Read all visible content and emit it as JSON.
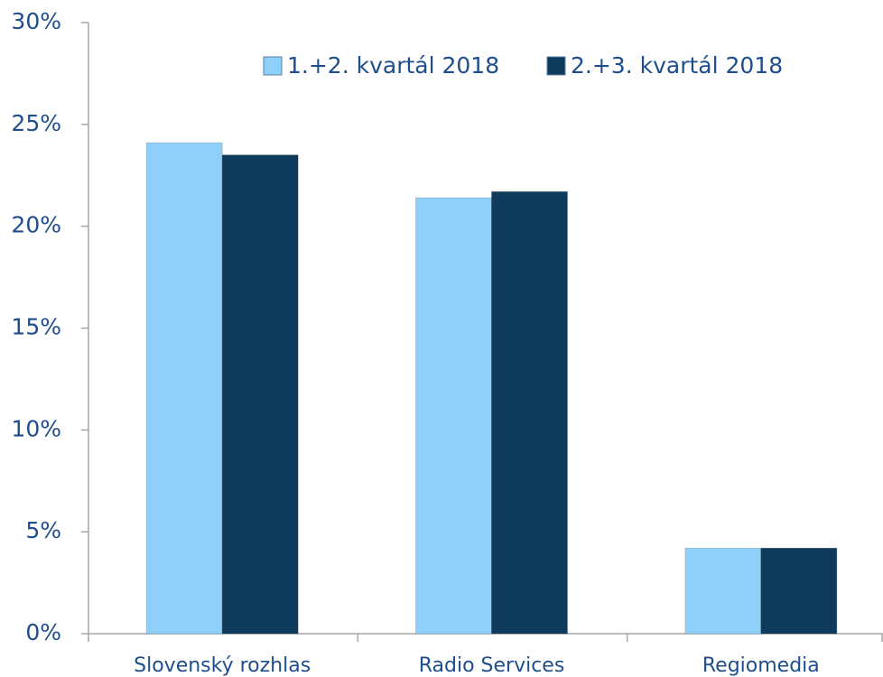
{
  "chart_data": {
    "type": "bar",
    "categories": [
      "Slovenský rozhlas",
      "Radio Services",
      "Regiomedia"
    ],
    "series": [
      {
        "name": "1.+2. kvartál 2018",
        "color": "#8fd0fb",
        "values": [
          24.1,
          21.4,
          4.2
        ]
      },
      {
        "name": "2.+3. kvartál 2018",
        "color": "#0e3a5c",
        "values": [
          23.5,
          21.7,
          4.2
        ]
      }
    ],
    "ylim": [
      0,
      30
    ],
    "yticks": [
      {
        "value": 0,
        "label": "0%"
      },
      {
        "value": 5,
        "label": "5%"
      },
      {
        "value": 10,
        "label": "10%"
      },
      {
        "value": 15,
        "label": "15%"
      },
      {
        "value": 20,
        "label": "20%"
      },
      {
        "value": 25,
        "label": "25%"
      },
      {
        "value": 30,
        "label": "30%"
      }
    ],
    "legend": "top"
  }
}
